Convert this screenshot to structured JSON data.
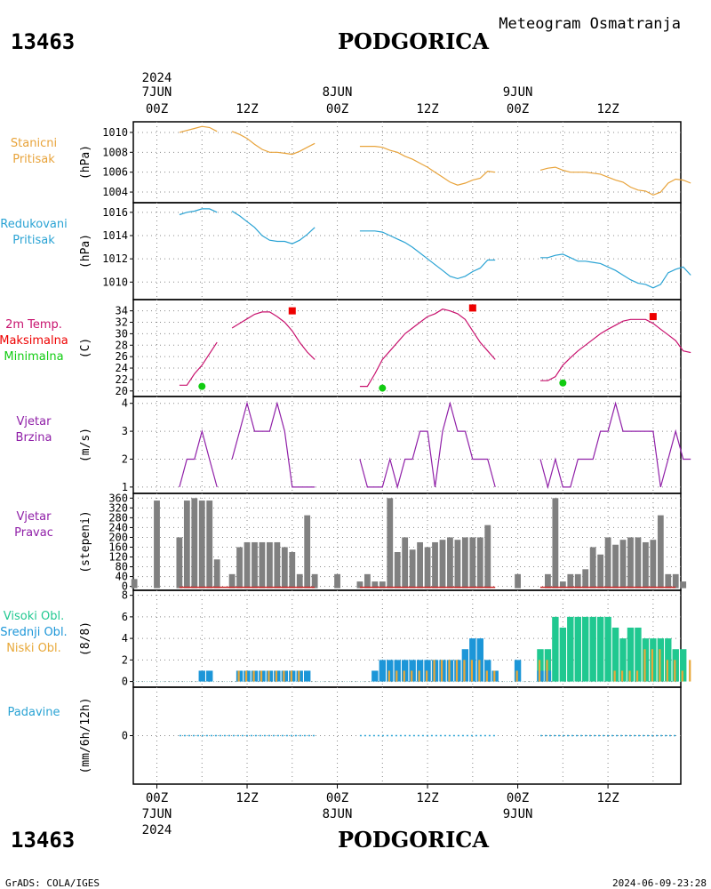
{
  "header": {
    "station_id": "13463",
    "station_name": "PODGORICA",
    "subtitle": "Meteogram Osmatranja"
  },
  "time_axis": {
    "top_year": "2024",
    "top_labels": [
      {
        "hour": 0,
        "line1": "7JUN",
        "line2": "00Z"
      },
      {
        "hour": 12,
        "line1": "",
        "line2": "12Z"
      },
      {
        "hour": 24,
        "line1": "8JUN",
        "line2": "00Z"
      },
      {
        "hour": 36,
        "line1": "",
        "line2": "12Z"
      },
      {
        "hour": 48,
        "line1": "9JUN",
        "line2": "00Z"
      },
      {
        "hour": 60,
        "line1": "",
        "line2": "12Z"
      }
    ],
    "bottom_labels": [
      {
        "hour": 0,
        "line1": "00Z",
        "line2": "7JUN",
        "line3": "2024"
      },
      {
        "hour": 12,
        "line1": "12Z",
        "line2": "",
        "line3": ""
      },
      {
        "hour": 24,
        "line1": "00Z",
        "line2": "8JUN",
        "line3": ""
      },
      {
        "hour": 36,
        "line1": "12Z",
        "line2": "",
        "line3": ""
      },
      {
        "hour": 48,
        "line1": "00Z",
        "line2": "9JUN",
        "line3": ""
      },
      {
        "hour": 60,
        "line1": "12Z",
        "line2": "",
        "line3": ""
      }
    ]
  },
  "footer": {
    "station_id": "13463",
    "station_name": "PODGORICA",
    "credit": "GrADS: COLA/IGES",
    "timestamp": "2024-06-09-23:28"
  },
  "colors": {
    "station_pressure": "#e8a33a",
    "reduced_pressure": "#2aa3d4",
    "temperature": "#c8126e",
    "tmax": "#ee0000",
    "tmin": "#11cc11",
    "wind": "#9020a8",
    "direction": "#808080",
    "direction_zero": "#cc2222",
    "cloud_high": "#20c890",
    "cloud_mid": "#1c96d8",
    "cloud_low": "#e8a838",
    "precip": "#2aa3d4"
  },
  "chart_data": [
    {
      "type": "line",
      "panel": "station_pressure",
      "label_lines": [
        "Stanicni",
        "Pritisak"
      ],
      "ylabel": "(hPa)",
      "ylim": [
        1003.2,
        1010.8
      ],
      "yticks": [
        1004,
        1006,
        1008,
        1010
      ],
      "series": [
        {
          "x": [
            3,
            4,
            5,
            6,
            7,
            8
          ],
          "y": [
            1010.0,
            1010.2,
            1010.4,
            1010.6,
            1010.5,
            1010.1
          ]
        },
        {
          "x": [
            10,
            11,
            12,
            13,
            14,
            15,
            16,
            17,
            18,
            19,
            20,
            21
          ],
          "y": [
            1010.1,
            1009.8,
            1009.4,
            1008.8,
            1008.3,
            1008.0,
            1008.0,
            1007.9,
            1007.8,
            1008.1,
            1008.5,
            1008.9
          ]
        },
        {
          "x": [
            27,
            28,
            29,
            30,
            31,
            32,
            33,
            34,
            35,
            36,
            37,
            38,
            39,
            40,
            41,
            42,
            43,
            44,
            45
          ],
          "y": [
            1008.6,
            1008.6,
            1008.6,
            1008.5,
            1008.2,
            1008.0,
            1007.6,
            1007.3,
            1006.9,
            1006.5,
            1006.0,
            1005.5,
            1005.0,
            1004.7,
            1004.9,
            1005.2,
            1005.4,
            1006.1,
            1006.0
          ]
        },
        {
          "x": [
            51,
            52,
            53,
            54,
            55,
            56,
            57,
            58,
            59,
            60,
            61,
            62,
            63,
            64,
            65,
            66,
            67,
            68,
            69,
            70,
            71
          ],
          "y": [
            1006.2,
            1006.4,
            1006.5,
            1006.2,
            1006.0,
            1006.0,
            1006.0,
            1005.9,
            1005.8,
            1005.5,
            1005.2,
            1005.0,
            1004.5,
            1004.2,
            1004.1,
            1003.7,
            1004.0,
            1004.9,
            1005.3,
            1005.2,
            1004.9
          ]
        }
      ]
    },
    {
      "type": "line",
      "panel": "reduced_pressure",
      "label_lines": [
        "Redukovani",
        "Pritisak"
      ],
      "ylabel": "(hPa)",
      "ylim": [
        1008.8,
        1016.6
      ],
      "yticks": [
        1010,
        1012,
        1014,
        1016
      ],
      "series": [
        {
          "x": [
            3,
            4,
            5,
            6,
            7,
            8
          ],
          "y": [
            1015.8,
            1016.0,
            1016.1,
            1016.3,
            1016.3,
            1016.0
          ]
        },
        {
          "x": [
            10,
            11,
            12,
            13,
            14,
            15,
            16,
            17,
            18,
            19,
            20,
            21
          ],
          "y": [
            1016.1,
            1015.7,
            1015.2,
            1014.7,
            1014.0,
            1013.6,
            1013.5,
            1013.5,
            1013.3,
            1013.6,
            1014.1,
            1014.7
          ]
        },
        {
          "x": [
            27,
            28,
            29,
            30,
            31,
            32,
            33,
            34,
            35,
            36,
            37,
            38,
            39,
            40,
            41,
            42,
            43,
            44,
            45
          ],
          "y": [
            1014.4,
            1014.4,
            1014.4,
            1014.3,
            1014.0,
            1013.7,
            1013.4,
            1013.0,
            1012.5,
            1012.0,
            1011.5,
            1011.0,
            1010.5,
            1010.3,
            1010.5,
            1010.9,
            1011.2,
            1011.9,
            1011.9
          ]
        },
        {
          "x": [
            51,
            52,
            53,
            54,
            55,
            56,
            57,
            58,
            59,
            60,
            61,
            62,
            63,
            64,
            65,
            66,
            67,
            68,
            69,
            70,
            71
          ],
          "y": [
            1012.1,
            1012.1,
            1012.3,
            1012.4,
            1012.1,
            1011.8,
            1011.8,
            1011.7,
            1011.6,
            1011.3,
            1011.0,
            1010.6,
            1010.2,
            1009.9,
            1009.8,
            1009.5,
            1009.8,
            1010.8,
            1011.1,
            1011.3,
            1010.6
          ]
        }
      ]
    },
    {
      "type": "line",
      "panel": "temperature",
      "label_lines": [
        "2m Temp.",
        "Maksimalna",
        "Minimalna"
      ],
      "ylabel": "(C)",
      "ylim": [
        19.5,
        35.5
      ],
      "yticks": [
        20,
        22,
        24,
        26,
        28,
        30,
        32,
        34
      ],
      "series": [
        {
          "x": [
            3,
            4,
            5,
            6,
            7,
            8
          ],
          "y": [
            21.0,
            21.0,
            23.0,
            24.5,
            26.5,
            28.5
          ]
        },
        {
          "x": [
            10,
            11,
            12,
            13,
            14,
            15,
            16,
            17,
            18,
            19,
            20,
            21
          ],
          "y": [
            31.0,
            31.8,
            32.6,
            33.4,
            33.8,
            33.8,
            33.0,
            32.0,
            30.5,
            28.5,
            26.8,
            25.5
          ]
        },
        {
          "x": [
            27,
            28,
            29,
            30,
            31,
            32,
            33,
            34,
            35,
            36,
            37,
            38,
            39,
            40,
            41,
            42,
            43,
            44,
            45
          ],
          "y": [
            20.8,
            20.8,
            23.0,
            25.5,
            27.0,
            28.5,
            30.0,
            31.0,
            32.0,
            33.0,
            33.5,
            34.3,
            34.0,
            33.5,
            32.5,
            30.5,
            28.5,
            27.0,
            25.5
          ]
        },
        {
          "x": [
            51,
            52,
            53,
            54,
            55,
            56,
            57,
            58,
            59,
            60,
            61,
            62,
            63,
            64,
            65,
            66,
            67,
            68,
            69,
            70,
            71
          ],
          "y": [
            21.8,
            21.8,
            22.5,
            24.5,
            25.8,
            27.0,
            28.0,
            29.0,
            30.0,
            30.8,
            31.5,
            32.2,
            32.5,
            32.5,
            32.5,
            31.8,
            30.8,
            29.8,
            28.8,
            27.0,
            26.7
          ]
        }
      ],
      "tmax": [
        {
          "x": 18,
          "y": 34.0
        },
        {
          "x": 42,
          "y": 34.5
        },
        {
          "x": 66,
          "y": 33.0
        }
      ],
      "tmin": [
        {
          "x": 6,
          "y": 20.8
        },
        {
          "x": 30,
          "y": 20.5
        },
        {
          "x": 54,
          "y": 21.4
        }
      ]
    },
    {
      "type": "line",
      "panel": "wind_speed",
      "label_lines": [
        "Vjetar",
        "Brzina"
      ],
      "ylabel": "(m/s)",
      "ylim": [
        0.9,
        4.15
      ],
      "yticks": [
        1,
        2,
        3,
        4
      ],
      "series": [
        {
          "x": [
            3,
            4,
            5,
            6,
            7,
            8
          ],
          "y": [
            1,
            2,
            2,
            3,
            2,
            1
          ]
        },
        {
          "x": [
            10,
            11,
            12,
            13,
            14,
            15,
            16,
            17,
            18,
            19,
            20,
            21
          ],
          "y": [
            2,
            3,
            4,
            3,
            3,
            3,
            4,
            3,
            1,
            1,
            1,
            1
          ]
        },
        {
          "x": [
            27,
            28,
            29,
            30,
            31,
            32,
            33,
            34,
            35,
            36,
            37,
            38,
            39,
            40,
            41,
            42,
            43,
            44,
            45
          ],
          "y": [
            2,
            1,
            1,
            1,
            2,
            1,
            2,
            2,
            3,
            3,
            1,
            3,
            4,
            3,
            3,
            2,
            2,
            2,
            1
          ]
        },
        {
          "x": [
            51,
            52,
            53,
            54,
            55,
            56,
            57,
            58,
            59,
            60,
            61,
            62,
            63,
            64,
            65,
            66,
            67,
            68,
            69,
            70,
            71
          ],
          "y": [
            2,
            1,
            2,
            1,
            1,
            2,
            2,
            2,
            3,
            3,
            4,
            3,
            3,
            3,
            3,
            3,
            1,
            2,
            3,
            2,
            2
          ]
        }
      ]
    },
    {
      "type": "bar",
      "panel": "wind_direction",
      "label_lines": [
        "Vjetar",
        "Pravac"
      ],
      "ylabel": "(stepeni)",
      "ylim": [
        -5,
        372
      ],
      "yticks": [
        0,
        40,
        80,
        120,
        160,
        200,
        240,
        280,
        320,
        360
      ],
      "x": [
        -3,
        0,
        3,
        4,
        5,
        6,
        7,
        8,
        9,
        10,
        11,
        12,
        13,
        14,
        15,
        16,
        17,
        18,
        19,
        20,
        21,
        24,
        27,
        28,
        29,
        30,
        31,
        32,
        33,
        34,
        35,
        36,
        37,
        38,
        39,
        40,
        41,
        42,
        43,
        44,
        45,
        48,
        51,
        52,
        53,
        54,
        55,
        56,
        57,
        58,
        59,
        60,
        61,
        62,
        63,
        64,
        65,
        66,
        67,
        68,
        69,
        70,
        71
      ],
      "values": [
        30,
        350,
        200,
        350,
        360,
        350,
        350,
        110,
        0,
        50,
        160,
        180,
        180,
        180,
        180,
        180,
        160,
        140,
        50,
        290,
        50,
        50,
        20,
        50,
        20,
        20,
        360,
        140,
        200,
        150,
        180,
        160,
        180,
        190,
        200,
        190,
        200,
        200,
        200,
        250,
        0,
        50,
        0,
        50,
        360,
        20,
        50,
        50,
        70,
        160,
        130,
        200,
        170,
        190,
        200,
        200,
        180,
        190,
        290,
        50,
        50,
        20,
        0
      ],
      "zero_line_x": [
        [
          3,
          21
        ],
        [
          27,
          45
        ],
        [
          51,
          69
        ]
      ]
    },
    {
      "type": "bar",
      "panel": "clouds",
      "label_lines": [
        "Visoki Obl.",
        "Srednji Obl.",
        "Niski Obl."
      ],
      "ylabel": "(8/8)",
      "ylim": [
        -0.2,
        8.3
      ],
      "yticks": [
        0,
        2,
        4,
        6,
        8
      ],
      "x": [
        0,
        3,
        4,
        5,
        6,
        7,
        8,
        9,
        10,
        11,
        12,
        13,
        14,
        15,
        16,
        17,
        18,
        19,
        20,
        21,
        24,
        27,
        28,
        29,
        30,
        31,
        32,
        33,
        34,
        35,
        36,
        37,
        38,
        39,
        40,
        41,
        42,
        43,
        44,
        45,
        48,
        51,
        52,
        53,
        54,
        55,
        56,
        57,
        58,
        59,
        60,
        61,
        62,
        63,
        64,
        65,
        66,
        67,
        68,
        69,
        70,
        71
      ],
      "series": [
        {
          "name": "Visoki Obl.",
          "values": [
            0,
            0,
            0,
            0,
            0,
            0,
            0,
            0,
            0,
            0,
            0,
            0,
            0,
            0,
            0,
            0,
            0,
            0,
            0,
            0,
            0,
            0,
            0,
            0,
            0,
            0,
            0,
            0,
            0,
            0,
            0,
            0,
            0,
            0,
            0,
            0,
            0,
            0,
            0,
            0,
            0,
            3,
            3,
            6,
            5,
            6,
            6,
            6,
            6,
            6,
            6,
            5,
            4,
            5,
            5,
            4,
            4,
            4,
            4,
            3,
            3,
            0
          ]
        },
        {
          "name": "Srednji Obl.",
          "values": [
            0,
            0,
            0,
            0,
            1,
            1,
            0,
            0,
            0,
            1,
            1,
            1,
            1,
            1,
            1,
            1,
            1,
            1,
            1,
            0,
            0,
            0,
            0,
            1,
            2,
            2,
            2,
            2,
            2,
            2,
            2,
            2,
            2,
            2,
            2,
            3,
            4,
            4,
            2,
            1,
            2,
            1,
            1,
            0,
            0,
            0,
            0,
            0,
            0,
            0,
            0,
            0,
            0,
            0,
            0,
            0,
            0,
            0,
            0,
            0,
            0,
            0
          ]
        },
        {
          "name": "Niski Obl.",
          "values": [
            0,
            0,
            0,
            0,
            0,
            0,
            0,
            0,
            0,
            1,
            1,
            1,
            1,
            1,
            1,
            1,
            1,
            1,
            0,
            0,
            0,
            0,
            0,
            0,
            0,
            1,
            1,
            1,
            1,
            1,
            1,
            2,
            2,
            2,
            2,
            2,
            2,
            2,
            1,
            1,
            1,
            2,
            2,
            0,
            0,
            0,
            0,
            0,
            0,
            0,
            0,
            1,
            1,
            1,
            1,
            3,
            3,
            3,
            2,
            2,
            1,
            2
          ]
        }
      ]
    },
    {
      "type": "line",
      "panel": "precipitation",
      "label_lines": [
        "Padavine"
      ],
      "ylabel": "(mm/6h/12h)",
      "ylim": [
        -2,
        2
      ],
      "yticks": [
        0
      ],
      "series": [
        {
          "x": [
            3,
            21
          ],
          "y": [
            0,
            0
          ]
        },
        {
          "x": [
            27,
            45
          ],
          "y": [
            0,
            0
          ]
        },
        {
          "x": [
            51,
            69
          ],
          "y": [
            0,
            0
          ]
        }
      ]
    }
  ]
}
